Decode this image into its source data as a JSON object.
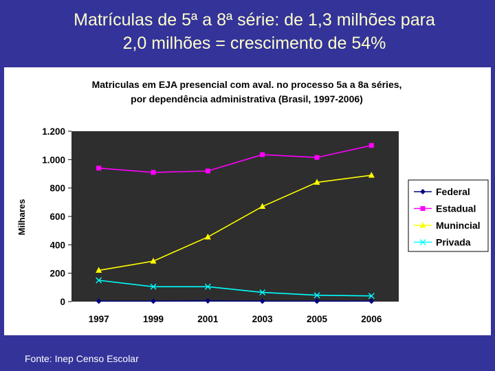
{
  "slide": {
    "title_line1": "Matrículas de 5ª a 8ª série: de 1,3 milhões para",
    "title_line2": "2,0 milhões = crescimento de 54%",
    "footnote": "Fonte: Inep Censo Escolar",
    "background_color": "#33339a",
    "title_color": "#ffffcc"
  },
  "chart_data": {
    "type": "line",
    "title_line1": "Matriculas em EJA presencial com aval. no processo 5a a 8a séries,",
    "title_line2": "por dependência administrativa (Brasil, 1997-2006)",
    "xlabel": "",
    "ylabel": "Milhares",
    "categories": [
      "1997",
      "1999",
      "2001",
      "2003",
      "2005",
      "2006"
    ],
    "ylim": [
      0,
      1200
    ],
    "yticks": [
      0,
      200,
      400,
      600,
      800,
      1000,
      1200
    ],
    "ytick_labels": [
      "0",
      "200",
      "400",
      "600",
      "800",
      "1.000",
      "1.200"
    ],
    "grid": false,
    "plot_background": "#2e2e2e",
    "legend_position": "right",
    "series": [
      {
        "name": "Federal",
        "color": "#000080",
        "marker": "diamond",
        "values": [
          3,
          3,
          5,
          3,
          3,
          3
        ]
      },
      {
        "name": "Estadual",
        "color": "#ff00ff",
        "marker": "square",
        "values": [
          940,
          910,
          920,
          1035,
          1015,
          1100
        ]
      },
      {
        "name": "Munincial",
        "color": "#ffff00",
        "marker": "triangle",
        "values": [
          220,
          285,
          455,
          670,
          840,
          890
        ]
      },
      {
        "name": "Privada",
        "color": "#00ffff",
        "marker": "x",
        "values": [
          150,
          105,
          105,
          65,
          45,
          40
        ]
      }
    ]
  }
}
